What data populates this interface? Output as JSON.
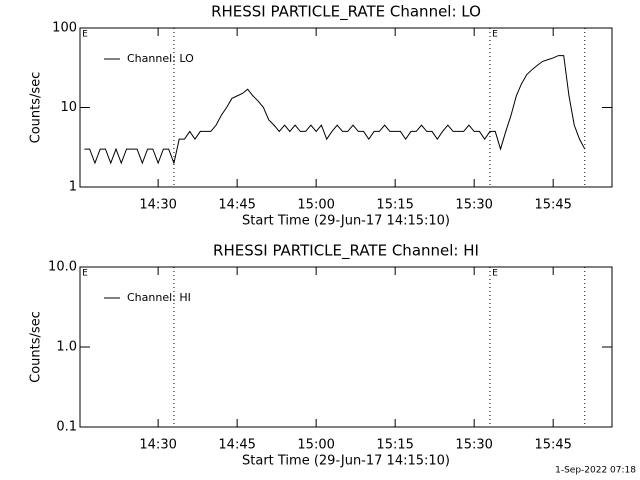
{
  "chart_data": [
    {
      "type": "line",
      "title": "RHESSI PARTICLE_RATE Channel: LO",
      "xlabel": "Start Time (29-Jun-17 14:15:10)",
      "ylabel": "Counts/sec",
      "log_y": true,
      "legend": "top-left",
      "xlim": [
        "14:15:10",
        "15:56:10"
      ],
      "xticks": [
        "14:30",
        "14:45",
        "15:00",
        "15:15",
        "15:30",
        "15:45"
      ],
      "ylim": [
        1,
        100
      ],
      "yticks": [
        1,
        10,
        100
      ],
      "vlines": [
        "14:33",
        "15:33",
        "15:51"
      ],
      "annotations": [
        {
          "x": "14:15:10",
          "text": "E"
        },
        {
          "x": "15:33",
          "text": "E"
        }
      ],
      "x": [
        "14:16",
        "14:17",
        "14:18",
        "14:19",
        "14:20",
        "14:21",
        "14:22",
        "14:23",
        "14:24",
        "14:25",
        "14:26",
        "14:27",
        "14:28",
        "14:29",
        "14:30",
        "14:31",
        "14:32",
        "14:33",
        "14:34",
        "14:35",
        "14:36",
        "14:37",
        "14:38",
        "14:39",
        "14:40",
        "14:41",
        "14:42",
        "14:43",
        "14:44",
        "14:45",
        "14:46",
        "14:47",
        "14:48",
        "14:49",
        "14:50",
        "14:51",
        "14:52",
        "14:53",
        "14:54",
        "14:55",
        "14:56",
        "14:57",
        "14:58",
        "14:59",
        "15:00",
        "15:01",
        "15:02",
        "15:03",
        "15:04",
        "15:05",
        "15:06",
        "15:07",
        "15:08",
        "15:09",
        "15:10",
        "15:11",
        "15:12",
        "15:13",
        "15:14",
        "15:15",
        "15:16",
        "15:17",
        "15:18",
        "15:19",
        "15:20",
        "15:21",
        "15:22",
        "15:23",
        "15:24",
        "15:25",
        "15:26",
        "15:27",
        "15:28",
        "15:29",
        "15:30",
        "15:31",
        "15:32",
        "15:33",
        "15:34",
        "15:35",
        "15:36",
        "15:37",
        "15:38",
        "15:39",
        "15:40",
        "15:41",
        "15:42",
        "15:43",
        "15:44",
        "15:45",
        "15:46",
        "15:47",
        "15:48",
        "15:49",
        "15:50",
        "15:51"
      ],
      "series": [
        {
          "name": "Channel: LO",
          "color": "#000000",
          "values": [
            3,
            3,
            2,
            3,
            3,
            2,
            3,
            2,
            3,
            3,
            3,
            2,
            3,
            3,
            2,
            3,
            3,
            2,
            4,
            4,
            5,
            4,
            5,
            5,
            5,
            6,
            8,
            10,
            13,
            14,
            15,
            17,
            14,
            12,
            10,
            7,
            6,
            5,
            6,
            5,
            6,
            5,
            5,
            6,
            5,
            6,
            4,
            5,
            6,
            5,
            5,
            6,
            5,
            5,
            4,
            5,
            5,
            6,
            5,
            5,
            5,
            4,
            5,
            5,
            6,
            5,
            5,
            4,
            5,
            6,
            5,
            5,
            5,
            6,
            5,
            5,
            4,
            5,
            5,
            3,
            5,
            8,
            14,
            20,
            26,
            30,
            34,
            38,
            40,
            42,
            45,
            45,
            14,
            6,
            4,
            3
          ]
        }
      ]
    },
    {
      "type": "line",
      "title": "RHESSI PARTICLE_RATE Channel: HI",
      "xlabel": "Start Time (29-Jun-17 14:15:10)",
      "ylabel": "Counts/sec",
      "log_y": true,
      "legend": "top-left",
      "xlim": [
        "14:15:10",
        "15:56:10"
      ],
      "xticks": [
        "14:30",
        "14:45",
        "15:00",
        "15:15",
        "15:30",
        "15:45"
      ],
      "ylim": [
        0.1,
        10
      ],
      "yticks": [
        0.1,
        {
          "value": 1,
          "label": "1.0"
        },
        {
          "value": 10,
          "label": "10.0"
        }
      ],
      "vlines": [
        "14:33",
        "15:33",
        "15:51"
      ],
      "annotations": [
        {
          "x": "14:15:10",
          "text": "E"
        },
        {
          "x": "15:33",
          "text": "E"
        }
      ],
      "x": [],
      "series": [
        {
          "name": "Channel: HI",
          "color": "#000000",
          "values": []
        }
      ]
    }
  ],
  "footer": "1-Sep-2022 07:18"
}
